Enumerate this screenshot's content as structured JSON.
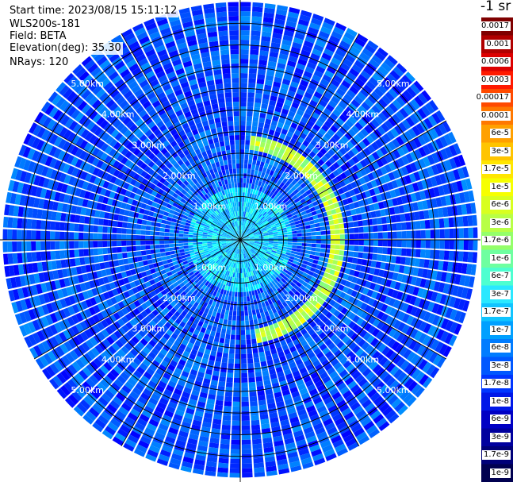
{
  "info": {
    "start_time": "Start time: 2023/08/15 15:11:12",
    "instrument": "WLS200s-181",
    "field": "Field: BETA",
    "elevation": "Elevation(deg): 35.30",
    "nrays": "NRays: 120"
  },
  "range_rings": {
    "unit": "km",
    "values": [
      1.0,
      2.0,
      3.0,
      4.0,
      5.0
    ],
    "labels": [
      "1.00km",
      "2.00km",
      "3.00km",
      "4.00km",
      "5.00km"
    ]
  },
  "colorbar": {
    "unit_label": "-1 sr",
    "labels": [
      "0.0017",
      "0.001",
      "0.0006",
      "0.0003",
      "0.00017",
      "0.0001",
      "6e-5",
      "3e-5",
      "1.7e-5",
      "1e-5",
      "6e-6",
      "3e-6",
      "1.7e-6",
      "1e-6",
      "6e-7",
      "3e-7",
      "1.7e-7",
      "1e-7",
      "6e-8",
      "3e-8",
      "1.7e-8",
      "1e-8",
      "6e-9",
      "3e-9",
      "1.7e-9",
      "1e-9"
    ],
    "colors": [
      "#7f0000",
      "#b00000",
      "#dc0000",
      "#ff1a00",
      "#ff4a00",
      "#ff7800",
      "#ffa000",
      "#ffc400",
      "#ffe600",
      "#f6ff00",
      "#d8ff20",
      "#b8ff46",
      "#94ff6a",
      "#6effa0",
      "#4dffd0",
      "#2ae8ff",
      "#10c4ff",
      "#00a0ff",
      "#007cff",
      "#0058ff",
      "#0036ff",
      "#0018e8",
      "#0000c4",
      "#00009e",
      "#000078",
      "#000050"
    ]
  },
  "chart_data": {
    "type": "heatmap",
    "projection": "polar PPI",
    "field": "BETA",
    "elevation_deg": 35.3,
    "nrays": 120,
    "range_km": [
      0,
      5.5
    ],
    "ring_spacing_km": 1.0,
    "grid": true,
    "color_scale": "log",
    "value_range": [
      1e-09,
      0.0017
    ],
    "feature": {
      "description": "enhanced backscatter arc",
      "radius_km": 2.25,
      "azimuth_from_deg": 5,
      "azimuth_to_deg": 170,
      "approx_beta": 3e-06
    },
    "background_beta": 1.7e-08
  }
}
